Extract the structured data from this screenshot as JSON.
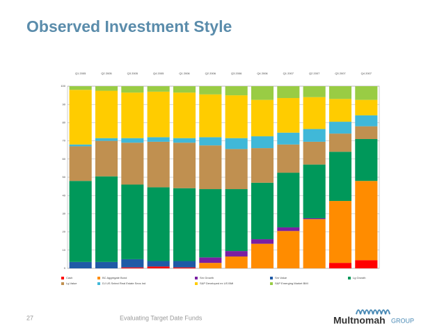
{
  "page": {
    "title": "Observed Investment Style",
    "page_number": "27",
    "footer": "Evaluating Target Date Funds",
    "logo": "Multnomah",
    "logo_suffix": "GROUP"
  },
  "chart_data": {
    "type": "stacked_bar",
    "categories": [
      "Q1 2005",
      "Q2 2005",
      "Q3 2005",
      "Q4 2005",
      "Q1 2006",
      "Q2 2006",
      "Q3 2006",
      "Q4 2006",
      "Q1 2007",
      "Q2 2007",
      "Q3 2007",
      "Q4 2007"
    ],
    "series": [
      {
        "name": "Cash",
        "color": "#ff0000",
        "values": [
          0,
          0,
          0.5,
          1,
          0.5,
          0,
          0,
          0,
          0,
          0,
          3,
          4.5
        ]
      },
      {
        "name": "BC Aggregate Bond",
        "color": "#ff8c00",
        "values": [
          0,
          0,
          0,
          0,
          0,
          3,
          6.5,
          13.5,
          20.5,
          27,
          34,
          43.5
        ]
      },
      {
        "name": "Sm Growth",
        "color": "#7a1fa2",
        "values": [
          0,
          0,
          0,
          0,
          0,
          3,
          3,
          2.5,
          2,
          0.5,
          0,
          0
        ]
      },
      {
        "name": "Sm Value",
        "color": "#1f5aa6",
        "values": [
          3.5,
          3.5,
          4.5,
          3,
          3.5,
          0,
          0,
          0,
          0,
          0,
          0,
          0
        ]
      },
      {
        "name": "Lg Growth",
        "color": "#00985a",
        "values": [
          44.5,
          47,
          41,
          40.5,
          40,
          37.5,
          34,
          31,
          30,
          29.5,
          27,
          23
        ]
      },
      {
        "name": "Lg Value",
        "color": "#c09050",
        "values": [
          19,
          19.5,
          23,
          25,
          25,
          24,
          22,
          19,
          15.5,
          12.5,
          10,
          7
        ]
      },
      {
        "name": "DJ US Select Real Estate Secs Ind",
        "color": "#40b8d8",
        "values": [
          1,
          1.5,
          2.5,
          2.5,
          2.5,
          4.5,
          6,
          6.5,
          6.5,
          7,
          6.5,
          6
        ]
      },
      {
        "name": "S&P Developed ex US BMI",
        "color": "#ffcc00",
        "values": [
          30,
          26,
          25,
          25,
          25,
          23.5,
          23.5,
          20,
          19,
          17.5,
          12.5,
          8.5
        ]
      },
      {
        "name": "S&P Emerging Market BMI",
        "color": "#99cc44",
        "values": [
          2,
          2.5,
          3.5,
          3,
          3.5,
          4.5,
          5,
          7.5,
          6.5,
          6,
          7,
          7.5
        ]
      }
    ],
    "ylim": [
      0,
      100
    ],
    "yticks": [
      0,
      10,
      20,
      30,
      40,
      50,
      60,
      70,
      80,
      90,
      100
    ],
    "grid": true
  }
}
